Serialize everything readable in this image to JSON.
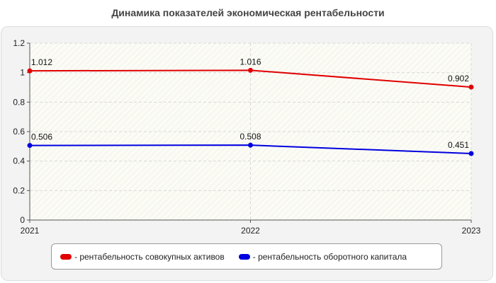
{
  "chart_data": {
    "type": "line",
    "title": "Динамика показателей экономическая рентабельности",
    "categories": [
      "2021",
      "2022",
      "2023"
    ],
    "ylim": [
      0,
      1.2
    ],
    "yticks": [
      "0",
      "0.2",
      "0.4",
      "0.6",
      "0.8",
      "1",
      "1.2"
    ],
    "grid": true,
    "legend_position": "bottom",
    "series": [
      {
        "name": "- рентабельность совокупных активов",
        "color": "#e00000",
        "values": [
          1.012,
          1.016,
          0.902
        ],
        "labels": [
          "1.012",
          "1.016",
          "0.902"
        ]
      },
      {
        "name": "- рентабельность оборотного капитала",
        "color": "#0000e0",
        "values": [
          0.506,
          0.508,
          0.451
        ],
        "labels": [
          "0.506",
          "0.508",
          "0.451"
        ]
      }
    ]
  }
}
